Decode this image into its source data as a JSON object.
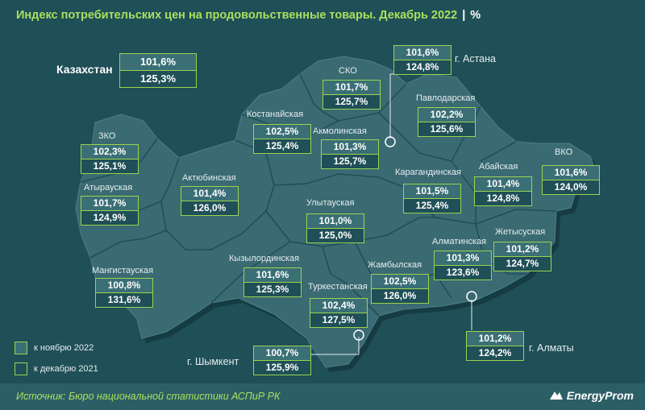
{
  "title": "Индекс потребительских цен на продовольственные товары. Декабрь 2022",
  "separator": "|",
  "unit": "%",
  "country": {
    "label": "Казахстан",
    "v1": "101,6%",
    "v2": "125,3%"
  },
  "regions": [
    {
      "id": "zko",
      "label": "ЗКО",
      "v1": "102,3%",
      "v2": "125,1%"
    },
    {
      "id": "atyrau",
      "label": "Атырауская",
      "v1": "101,7%",
      "v2": "124,9%"
    },
    {
      "id": "mangistau",
      "label": "Мангистауская",
      "v1": "100,8%",
      "v2": "131,6%"
    },
    {
      "id": "aktobe",
      "label": "Актюбинская",
      "v1": "101,4%",
      "v2": "126,0%"
    },
    {
      "id": "kostanay",
      "label": "Костанайская",
      "v1": "102,5%",
      "v2": "125,4%"
    },
    {
      "id": "sko",
      "label": "СКО",
      "v1": "101,7%",
      "v2": "125,7%"
    },
    {
      "id": "akmola",
      "label": "Акмолинская",
      "v1": "101,3%",
      "v2": "125,7%"
    },
    {
      "id": "pavlodar",
      "label": "Павлодарская",
      "v1": "102,2%",
      "v2": "125,6%"
    },
    {
      "id": "karaganda",
      "label": "Карагандинская",
      "v1": "101,5%",
      "v2": "125,4%"
    },
    {
      "id": "ulytau",
      "label": "Улытауская",
      "v1": "101,0%",
      "v2": "125,0%"
    },
    {
      "id": "kyzylorda",
      "label": "Кызылординская",
      "v1": "101,6%",
      "v2": "125,3%"
    },
    {
      "id": "turkestan",
      "label": "Туркестанская",
      "v1": "102,4%",
      "v2": "127,5%"
    },
    {
      "id": "zhambyl",
      "label": "Жамбылская",
      "v1": "102,5%",
      "v2": "126,0%"
    },
    {
      "id": "almaty_reg",
      "label": "Алматинская",
      "v1": "101,3%",
      "v2": "123,6%"
    },
    {
      "id": "zhetysu",
      "label": "Жетысуская",
      "v1": "101,2%",
      "v2": "124,7%"
    },
    {
      "id": "abai",
      "label": "Абайская",
      "v1": "101,4%",
      "v2": "124,8%"
    },
    {
      "id": "vko",
      "label": "ВКО",
      "v1": "101,6%",
      "v2": "124,0%"
    }
  ],
  "cities": [
    {
      "id": "astana",
      "label": "г. Астана",
      "v1": "101,6%",
      "v2": "124,8%"
    },
    {
      "id": "almaty",
      "label": "г. Алматы",
      "v1": "101,2%",
      "v2": "124,2%"
    },
    {
      "id": "shymkent",
      "label": "г. Шымкент",
      "v1": "100,7%",
      "v2": "125,9%"
    }
  ],
  "legend": {
    "item1": "к ноябрю 2022",
    "item2": "к декабрю 2021"
  },
  "source": "Источник: Бюро национальной статистики АСПиР РК",
  "logo": "EnergyProm",
  "colors": {
    "background": "#1f4f57",
    "map": "#3a6a72",
    "accent": "#9bd44e",
    "title": "#a8e05f"
  }
}
